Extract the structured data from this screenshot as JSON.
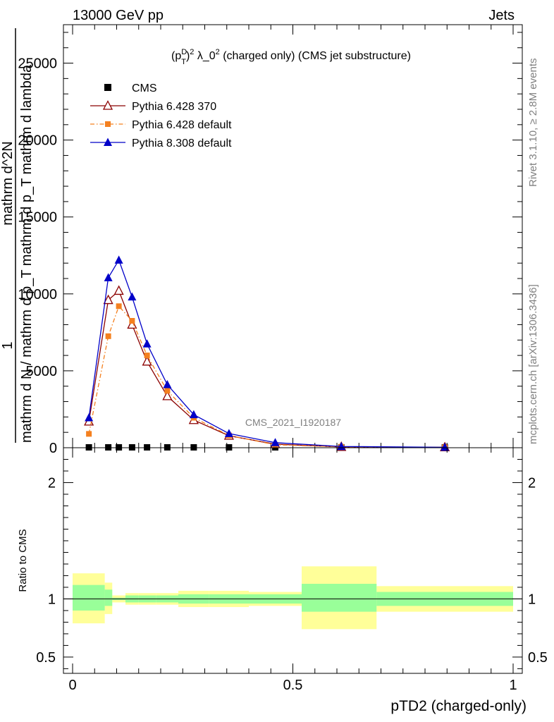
{
  "header": {
    "left": "13000 GeV pp",
    "right": "Jets"
  },
  "side": {
    "rivet": "Rivet 3.1.10, ≥ 2.8M events",
    "mcplots": "mcplots.cern.ch [arXiv:1306.3436]"
  },
  "analysis_label": "CMS_2021_I1920187",
  "chart_data": [
    {
      "type": "line",
      "title": "(p_T^D)^2 λ_0^2 (charged only) (CMS jet substructure)",
      "title_parts": {
        "a": "(p",
        "sub": "T",
        "sup1": "D",
        "b": ")",
        "sup2": "2",
        "c": " λ_0",
        "sup3": "2",
        "d": " (charged only) (CMS jet substructure)"
      },
      "ylabel_lines": [
        "1",
        "mathrm d N / mathrm d p_T mathrm d p_T mathrm d lambda",
        "mathrm d^2N"
      ],
      "xlabel": "pTD2 (charged-only)",
      "xlim": [
        0,
        1
      ],
      "ylim": [
        0,
        27500
      ],
      "x_ticks": [
        0,
        0.5,
        1
      ],
      "x_tick_labels": [
        "0",
        "0.5",
        "1"
      ],
      "y_ticks": [
        0,
        5000,
        10000,
        15000,
        20000,
        25000
      ],
      "y_tick_labels": [
        "0",
        "5000",
        "10000",
        "15000",
        "20000",
        "25000"
      ],
      "legend_position": "top-left",
      "x": [
        0.037,
        0.081,
        0.105,
        0.135,
        0.169,
        0.215,
        0.275,
        0.355,
        0.46,
        0.61,
        0.845
      ],
      "x_edges": [
        0,
        0.073,
        0.09,
        0.12,
        0.15,
        0.19,
        0.24,
        0.31,
        0.4,
        0.52,
        0.69,
        1.0
      ],
      "series": [
        {
          "name": "CMS",
          "color": "#000000",
          "marker": "square",
          "line": "none",
          "values": [
            25,
            25,
            25,
            25,
            25,
            25,
            25,
            25,
            25,
            25,
            25
          ]
        },
        {
          "name": "Pythia 6.428 370",
          "color": "#8b0000",
          "marker": "open-triangle",
          "line": "solid",
          "values": [
            1700,
            9600,
            10200,
            8000,
            5600,
            3350,
            1800,
            780,
            230,
            55,
            30
          ]
        },
        {
          "name": "Pythia 6.428 default",
          "color": "#f4801f",
          "marker": "filled-square",
          "line": "dashdot",
          "values": [
            900,
            7250,
            9200,
            8250,
            6000,
            3700,
            1950,
            800,
            190,
            60,
            30
          ]
        },
        {
          "name": "Pythia 8.308 default",
          "color": "#0000c8",
          "marker": "filled-triangle",
          "line": "solid",
          "values": [
            1950,
            11050,
            12200,
            9800,
            6750,
            4100,
            2150,
            920,
            330,
            80,
            30
          ]
        }
      ]
    },
    {
      "type": "area",
      "ylabel": "Ratio to CMS",
      "xlim": [
        0,
        1
      ],
      "ylim": [
        0.36,
        2.3
      ],
      "y_ticks": [
        0.5,
        1,
        2
      ],
      "y_tick_labels": [
        "0.5",
        "1",
        "2"
      ],
      "x_edges": [
        0,
        0.073,
        0.09,
        0.12,
        0.15,
        0.19,
        0.24,
        0.31,
        0.4,
        0.52,
        0.69,
        1.0
      ],
      "bands": [
        {
          "name": "total uncertainty",
          "color": "#ffff99",
          "low": [
            0.79,
            0.87,
            0.97,
            0.95,
            0.95,
            0.95,
            0.93,
            0.93,
            0.94,
            0.74,
            0.89
          ],
          "high": [
            1.22,
            1.14,
            1.03,
            1.05,
            1.05,
            1.05,
            1.07,
            1.07,
            1.06,
            1.28,
            1.11
          ]
        },
        {
          "name": "statistical uncertainty",
          "color": "#99ff99",
          "low": [
            0.9,
            0.94,
            0.99,
            0.97,
            0.97,
            0.97,
            0.96,
            0.96,
            0.96,
            0.89,
            0.94
          ],
          "high": [
            1.12,
            1.08,
            1.01,
            1.03,
            1.03,
            1.03,
            1.04,
            1.04,
            1.04,
            1.13,
            1.06
          ]
        }
      ]
    }
  ]
}
